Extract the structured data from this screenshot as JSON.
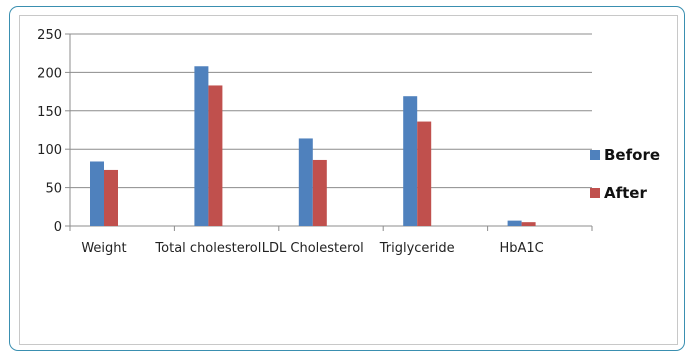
{
  "chart_data": {
    "type": "bar",
    "title": "",
    "xlabel": "",
    "ylabel": "",
    "categories": [
      "Weight",
      "Total cholesterol",
      "LDL Cholesterol",
      "Triglyceride",
      "HbA1C"
    ],
    "series": [
      {
        "name": "Before",
        "color": "#4f81bd",
        "values": [
          84,
          208,
          114,
          169,
          7
        ]
      },
      {
        "name": "After",
        "color": "#c0504d",
        "values": [
          73,
          183,
          86,
          136,
          5
        ]
      }
    ],
    "ylim": [
      0,
      250
    ],
    "yticks": [
      0,
      50,
      100,
      150,
      200,
      250
    ],
    "grid": true,
    "legend_position": "right"
  }
}
